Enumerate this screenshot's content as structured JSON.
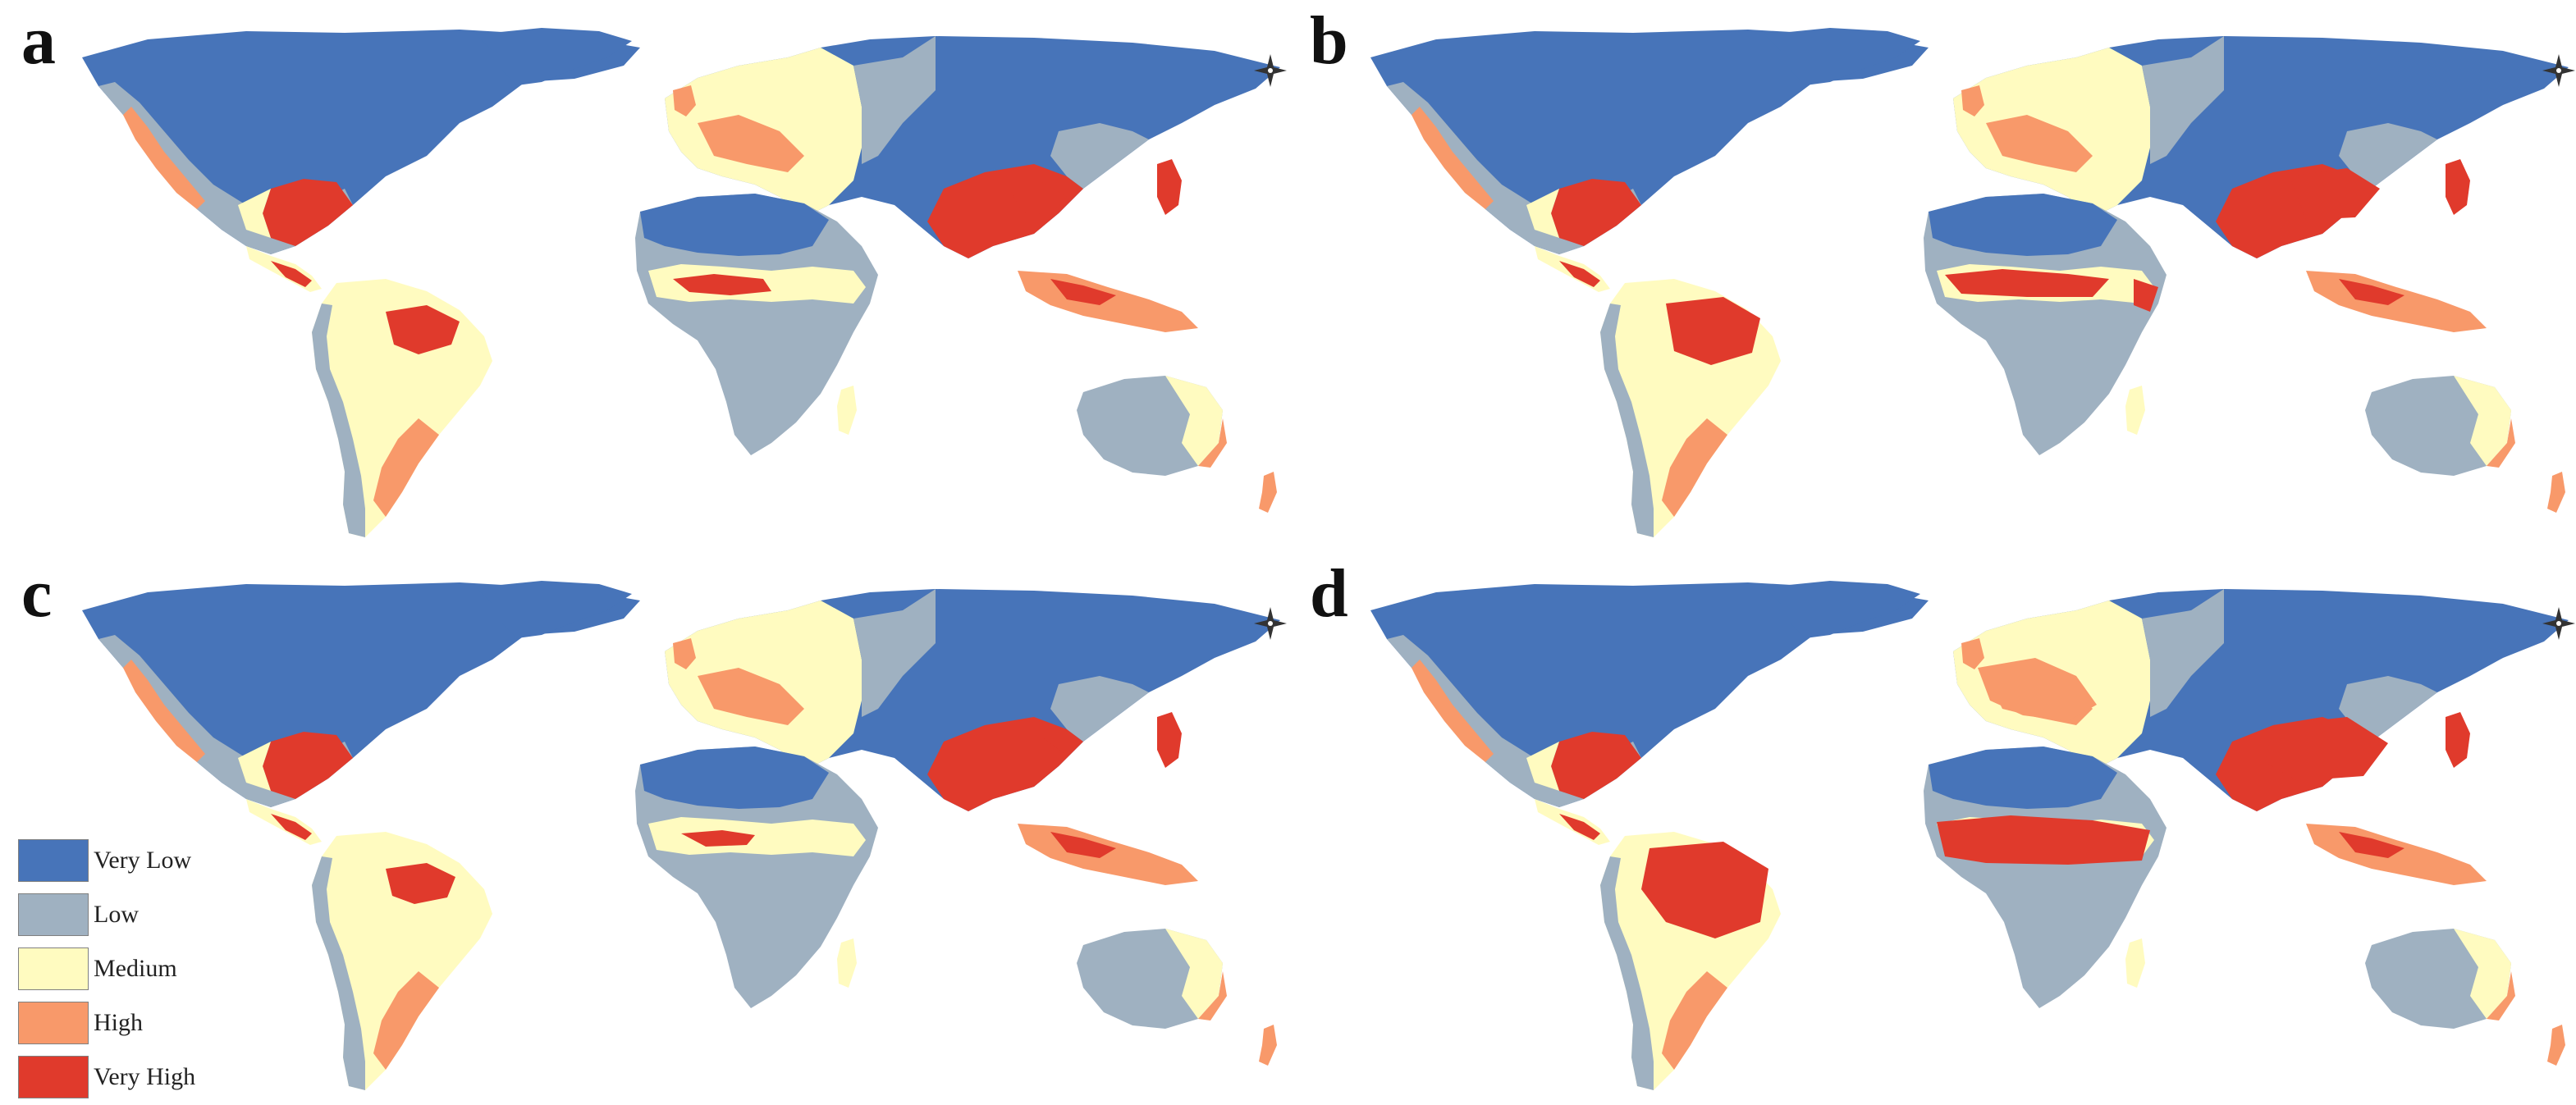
{
  "panels": [
    {
      "id": "a",
      "label": "a"
    },
    {
      "id": "b",
      "label": "b"
    },
    {
      "id": "c",
      "label": "c"
    },
    {
      "id": "d",
      "label": "d"
    }
  ],
  "legend": {
    "items": [
      {
        "label": "Very Low",
        "color": "#4774b9"
      },
      {
        "label": "Low",
        "color": "#9fb1c1"
      },
      {
        "label": "Medium",
        "color": "#fffbc0"
      },
      {
        "label": "High",
        "color": "#f8996a"
      },
      {
        "label": "Very High",
        "color": "#e03a2c"
      }
    ]
  },
  "map": {
    "ocean_color": "#ffffff",
    "compass_icon": "north-arrow-compass-icon"
  }
}
